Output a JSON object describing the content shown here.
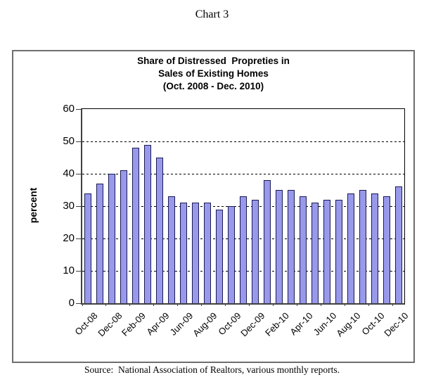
{
  "page_title": "Chart 3",
  "chart": {
    "title_lines": [
      "Share of Distressed  Propreties in",
      "Sales of Existing Homes",
      "(Oct. 2008 - Dec. 2010)"
    ],
    "ylabel": "percent",
    "source": "Source:  National Association of Realtors, various monthly reports."
  },
  "chart_data": {
    "type": "bar",
    "title": "Share of Distressed Propreties in Sales of Existing Homes (Oct. 2008 - Dec. 2010)",
    "xlabel": "",
    "ylabel": "percent",
    "ylim": [
      0,
      60
    ],
    "ytick_interval": 10,
    "grid": true,
    "legend": "none",
    "categories": [
      "Oct-08",
      "Nov-08",
      "Dec-08",
      "Jan-09",
      "Feb-09",
      "Mar-09",
      "Apr-09",
      "May-09",
      "Jun-09",
      "Jul-09",
      "Aug-09",
      "Sep-09",
      "Oct-09",
      "Nov-09",
      "Dec-09",
      "Jan-10",
      "Feb-10",
      "Mar-10",
      "Apr-10",
      "May-10",
      "Jun-10",
      "Jul-10",
      "Aug-10",
      "Sep-10",
      "Oct-10",
      "Nov-10",
      "Dec-10"
    ],
    "values": [
      34,
      37,
      40,
      41,
      48,
      49,
      45,
      33,
      31,
      31,
      31,
      29,
      30,
      33,
      32,
      38,
      35,
      35,
      33,
      31,
      32,
      32,
      34,
      35,
      34,
      33,
      36
    ],
    "x_tick_labels_shown": [
      "Oct-08",
      "Dec-08",
      "Feb-09",
      "Apr-09",
      "Jun-09",
      "Aug-09",
      "Oct-09",
      "Dec-09",
      "Feb-10",
      "Apr-10",
      "Jun-10",
      "Aug-10",
      "Oct-10",
      "Dec-10"
    ],
    "bar_fill": "#9999EB",
    "bar_border": "#1a1a52"
  }
}
